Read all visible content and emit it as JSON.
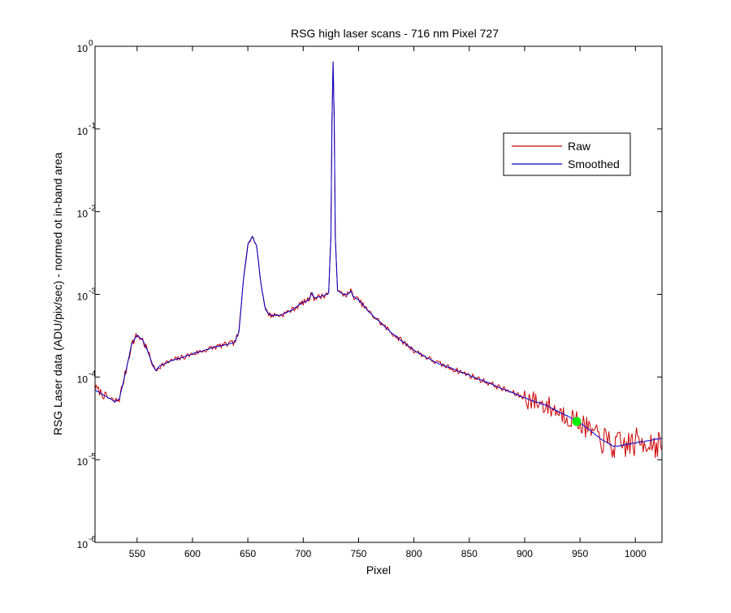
{
  "chart_data": {
    "type": "line",
    "title": "RSG high laser scans  - 716 nm    Pixel 727",
    "xlabel": "Pixel",
    "ylabel": "RSG Laser data (ADU/pix/sec) - normed ot in-band area",
    "xlim": [
      512,
      1024
    ],
    "ylim": [
      1e-06,
      1
    ],
    "yscale": "log",
    "xticks": [
      550,
      600,
      650,
      700,
      750,
      800,
      850,
      900,
      950,
      1000
    ],
    "yticks": [
      {
        "value": 1e-06,
        "base": "10",
        "exp": "-6"
      },
      {
        "value": 1e-05,
        "base": "10",
        "exp": "-5"
      },
      {
        "value": 0.0001,
        "base": "10",
        "exp": "-4"
      },
      {
        "value": 0.001,
        "base": "10",
        "exp": "-3"
      },
      {
        "value": 0.01,
        "base": "10",
        "exp": "-2"
      },
      {
        "value": 0.1,
        "base": "10",
        "exp": "-1"
      },
      {
        "value": 1,
        "base": "10",
        "exp": "0"
      }
    ],
    "grid": false,
    "legend_position": "top-right",
    "series": [
      {
        "name": "Raw",
        "color": "#cc0000",
        "anchors": [
          [
            512,
            7.5e-05
          ],
          [
            520,
            6e-05
          ],
          [
            530,
            5e-05
          ],
          [
            534,
            5.5e-05
          ],
          [
            540,
            0.00012
          ],
          [
            545,
            0.00025
          ],
          [
            550,
            0.00032
          ],
          [
            555,
            0.00028
          ],
          [
            560,
            0.0002
          ],
          [
            565,
            0.00013
          ],
          [
            567,
            0.00012
          ],
          [
            570,
            0.000135
          ],
          [
            580,
            0.000155
          ],
          [
            600,
            0.00019
          ],
          [
            620,
            0.00023
          ],
          [
            638,
            0.00026
          ],
          [
            642,
            0.00035
          ],
          [
            646,
            0.0015
          ],
          [
            650,
            0.004
          ],
          [
            654,
            0.005
          ],
          [
            658,
            0.0038
          ],
          [
            662,
            0.0013
          ],
          [
            666,
            0.00065
          ],
          [
            670,
            0.00056
          ],
          [
            680,
            0.00056
          ],
          [
            690,
            0.00065
          ],
          [
            700,
            0.0008
          ],
          [
            705,
            0.00086
          ],
          [
            708,
            0.00105
          ],
          [
            710,
            0.0009
          ],
          [
            720,
            0.00098
          ],
          [
            723,
            0.00105
          ],
          [
            725,
            0.005
          ],
          [
            726,
            0.12
          ],
          [
            727,
            0.65
          ],
          [
            728,
            0.13
          ],
          [
            729,
            0.005
          ],
          [
            731,
            0.0011
          ],
          [
            736,
            0.001
          ],
          [
            740,
            0.001
          ],
          [
            743,
            0.0011
          ],
          [
            745,
            0.00095
          ],
          [
            750,
            0.00085
          ],
          [
            760,
            0.0006
          ],
          [
            780,
            0.00034
          ],
          [
            800,
            0.00021
          ],
          [
            820,
            0.00015
          ],
          [
            850,
            0.000105
          ],
          [
            870,
            8.2e-05
          ],
          [
            900,
            5.6e-05
          ],
          [
            920,
            4.5e-05
          ],
          [
            940,
            3.3e-05
          ],
          [
            950,
            2.8e-05
          ],
          [
            960,
            2.2e-05
          ],
          [
            970,
            1.75e-05
          ],
          [
            980,
            1.45e-05
          ],
          [
            990,
            1.5e-05
          ],
          [
            1000,
            1.6e-05
          ],
          [
            1010,
            1.7e-05
          ],
          [
            1024,
            1.5e-05
          ]
        ]
      },
      {
        "name": "Smoothed",
        "color": "#0000cc",
        "anchors": [
          [
            512,
            7e-05
          ],
          [
            520,
            6e-05
          ],
          [
            530,
            5e-05
          ],
          [
            534,
            5.5e-05
          ],
          [
            540,
            0.00012
          ],
          [
            545,
            0.00025
          ],
          [
            550,
            0.00032
          ],
          [
            555,
            0.00028
          ],
          [
            560,
            0.0002
          ],
          [
            565,
            0.00013
          ],
          [
            567,
            0.00012
          ],
          [
            570,
            0.000135
          ],
          [
            580,
            0.000155
          ],
          [
            600,
            0.00019
          ],
          [
            620,
            0.00023
          ],
          [
            638,
            0.00026
          ],
          [
            642,
            0.00035
          ],
          [
            646,
            0.0015
          ],
          [
            650,
            0.004
          ],
          [
            654,
            0.005
          ],
          [
            658,
            0.0038
          ],
          [
            662,
            0.0013
          ],
          [
            666,
            0.00065
          ],
          [
            670,
            0.00056
          ],
          [
            680,
            0.00056
          ],
          [
            690,
            0.00065
          ],
          [
            700,
            0.0008
          ],
          [
            705,
            0.00086
          ],
          [
            708,
            0.00105
          ],
          [
            710,
            0.0009
          ],
          [
            720,
            0.00098
          ],
          [
            723,
            0.00105
          ],
          [
            725,
            0.005
          ],
          [
            726,
            0.12
          ],
          [
            727,
            0.65
          ],
          [
            728,
            0.13
          ],
          [
            729,
            0.005
          ],
          [
            731,
            0.0011
          ],
          [
            736,
            0.001
          ],
          [
            740,
            0.001
          ],
          [
            743,
            0.0011
          ],
          [
            745,
            0.00095
          ],
          [
            750,
            0.00085
          ],
          [
            760,
            0.0006
          ],
          [
            780,
            0.00034
          ],
          [
            800,
            0.00021
          ],
          [
            820,
            0.00015
          ],
          [
            850,
            0.000105
          ],
          [
            870,
            8.2e-05
          ],
          [
            900,
            5.6e-05
          ],
          [
            920,
            4.5e-05
          ],
          [
            940,
            3.3e-05
          ],
          [
            950,
            2.8e-05
          ],
          [
            960,
            2.2e-05
          ],
          [
            970,
            1.75e-05
          ],
          [
            980,
            1.45e-05
          ],
          [
            990,
            1.5e-05
          ],
          [
            1000,
            1.6e-05
          ],
          [
            1010,
            1.7e-05
          ],
          [
            1024,
            1.8e-05
          ]
        ]
      }
    ],
    "marker": {
      "x": 947,
      "y": 2.9e-05,
      "color": "#00ee00"
    }
  }
}
